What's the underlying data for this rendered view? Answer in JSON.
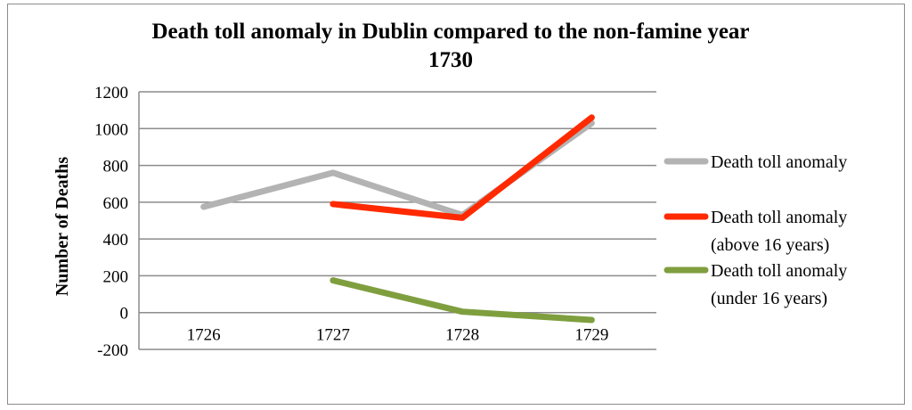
{
  "chart_data": {
    "type": "line",
    "title_line1": "Death toll anomaly in Dublin compared to the non-famine year",
    "title_line2": "1730",
    "xlabel": "",
    "ylabel": "Number of Deaths",
    "categories": [
      "1726",
      "1727",
      "1728",
      "1729"
    ],
    "ylim": [
      -200,
      1200
    ],
    "yticks": [
      -200,
      0,
      200,
      400,
      600,
      800,
      1000,
      1200
    ],
    "grid": true,
    "legend_position": "right",
    "series": [
      {
        "name": "Death toll anomaly",
        "legend_lines": [
          "Death toll anomaly"
        ],
        "color": "#b3b3b3",
        "values": [
          575,
          760,
          530,
          1030
        ]
      },
      {
        "name": "Death toll anomaly (above 16 years)",
        "legend_lines": [
          "Death toll anomaly",
          "(above 16 years)"
        ],
        "color": "#ff2a00",
        "values": [
          null,
          590,
          515,
          1060
        ]
      },
      {
        "name": "Death toll anomaly (under 16 years)",
        "legend_lines": [
          "Death toll anomaly",
          "(under 16 years)"
        ],
        "color": "#7f9f3f",
        "values": [
          null,
          175,
          5,
          -40
        ]
      }
    ]
  }
}
